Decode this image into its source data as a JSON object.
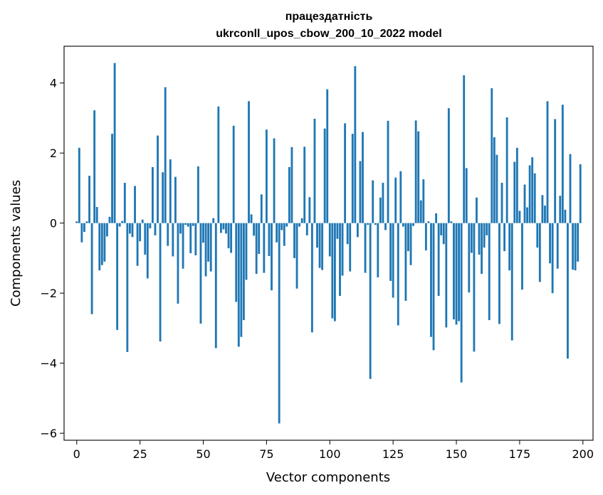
{
  "chart_data": {
    "type": "bar",
    "title_line1": "працездатність",
    "title_line2": "ukrconll_upos_cbow_200_10_2022 model",
    "xlabel": "Vector components",
    "ylabel": "Components values",
    "xlim": [
      -5,
      204
    ],
    "ylim": [
      -6.2,
      5.05
    ],
    "x_ticks": [
      0,
      25,
      50,
      75,
      100,
      125,
      150,
      175,
      200
    ],
    "y_ticks": [
      -6,
      -4,
      -2,
      0,
      2,
      4
    ],
    "bar_color": "#1f77b4",
    "grid": false,
    "values": [
      0.05,
      2.15,
      -0.55,
      -0.25,
      0.05,
      1.35,
      -2.6,
      3.22,
      0.46,
      -1.35,
      -1.2,
      -1.1,
      -0.38,
      0.18,
      2.55,
      4.57,
      -3.05,
      -0.1,
      0.06,
      1.15,
      -3.68,
      -0.3,
      -0.4,
      1.06,
      -1.22,
      -0.52,
      0.1,
      -0.9,
      -1.58,
      -0.15,
      1.6,
      -0.35,
      2.5,
      -3.38,
      1.45,
      3.88,
      -0.65,
      1.82,
      -0.95,
      1.32,
      -2.3,
      -0.3,
      -1.3,
      -0.05,
      -0.1,
      -0.86,
      -0.08,
      -0.92,
      1.62,
      -2.87,
      -0.56,
      -1.52,
      -1.1,
      -1.38,
      0.14,
      -3.57,
      3.33,
      -0.28,
      -0.18,
      -0.3,
      -0.72,
      -0.85,
      2.78,
      -2.25,
      -3.53,
      -3.25,
      -2.77,
      -1.62,
      3.48,
      0.25,
      -0.36,
      -1.45,
      -0.88,
      0.82,
      -1.42,
      2.67,
      -0.94,
      -1.92,
      2.42,
      -0.55,
      -5.72,
      -0.2,
      -0.65,
      -0.1,
      1.6,
      2.17,
      -1.0,
      -1.87,
      -0.1,
      0.14,
      2.18,
      -0.35,
      0.74,
      -3.12,
      2.98,
      -0.7,
      -1.28,
      -1.34,
      2.7,
      3.82,
      -0.95,
      -2.72,
      -2.8,
      -0.45,
      -2.08,
      -1.5,
      2.85,
      -0.6,
      -1.38,
      2.55,
      4.48,
      -0.4,
      1.77,
      2.6,
      -1.42,
      -0.05,
      -4.45,
      1.22,
      -0.05,
      -1.55,
      0.73,
      1.15,
      -0.2,
      2.92,
      -1.65,
      -2.13,
      1.3,
      -2.92,
      1.48,
      -0.1,
      -2.22,
      -0.8,
      -1.2,
      -0.08,
      2.93,
      2.62,
      0.65,
      1.25,
      -0.78,
      0.05,
      -3.25,
      -3.63,
      0.28,
      -2.08,
      -0.35,
      -0.6,
      -2.98,
      3.28,
      0.05,
      -2.75,
      -2.9,
      -2.8,
      -4.55,
      4.22,
      1.57,
      -1.98,
      -0.85,
      -3.67,
      0.73,
      -0.9,
      -1.45,
      -0.7,
      -0.35,
      -2.77,
      3.85,
      2.45,
      1.95,
      -2.88,
      1.15,
      -0.8,
      3.02,
      -1.35,
      -3.35,
      1.75,
      2.15,
      0.35,
      -1.9,
      1.1,
      0.45,
      1.65,
      1.88,
      1.42,
      -0.7,
      -1.68,
      0.8,
      0.5,
      3.48,
      -1.15,
      -2.0,
      2.97,
      -1.3,
      0.78,
      3.38,
      0.38,
      -3.87,
      1.97,
      -1.33,
      -1.35,
      -1.1,
      1.68
    ]
  }
}
